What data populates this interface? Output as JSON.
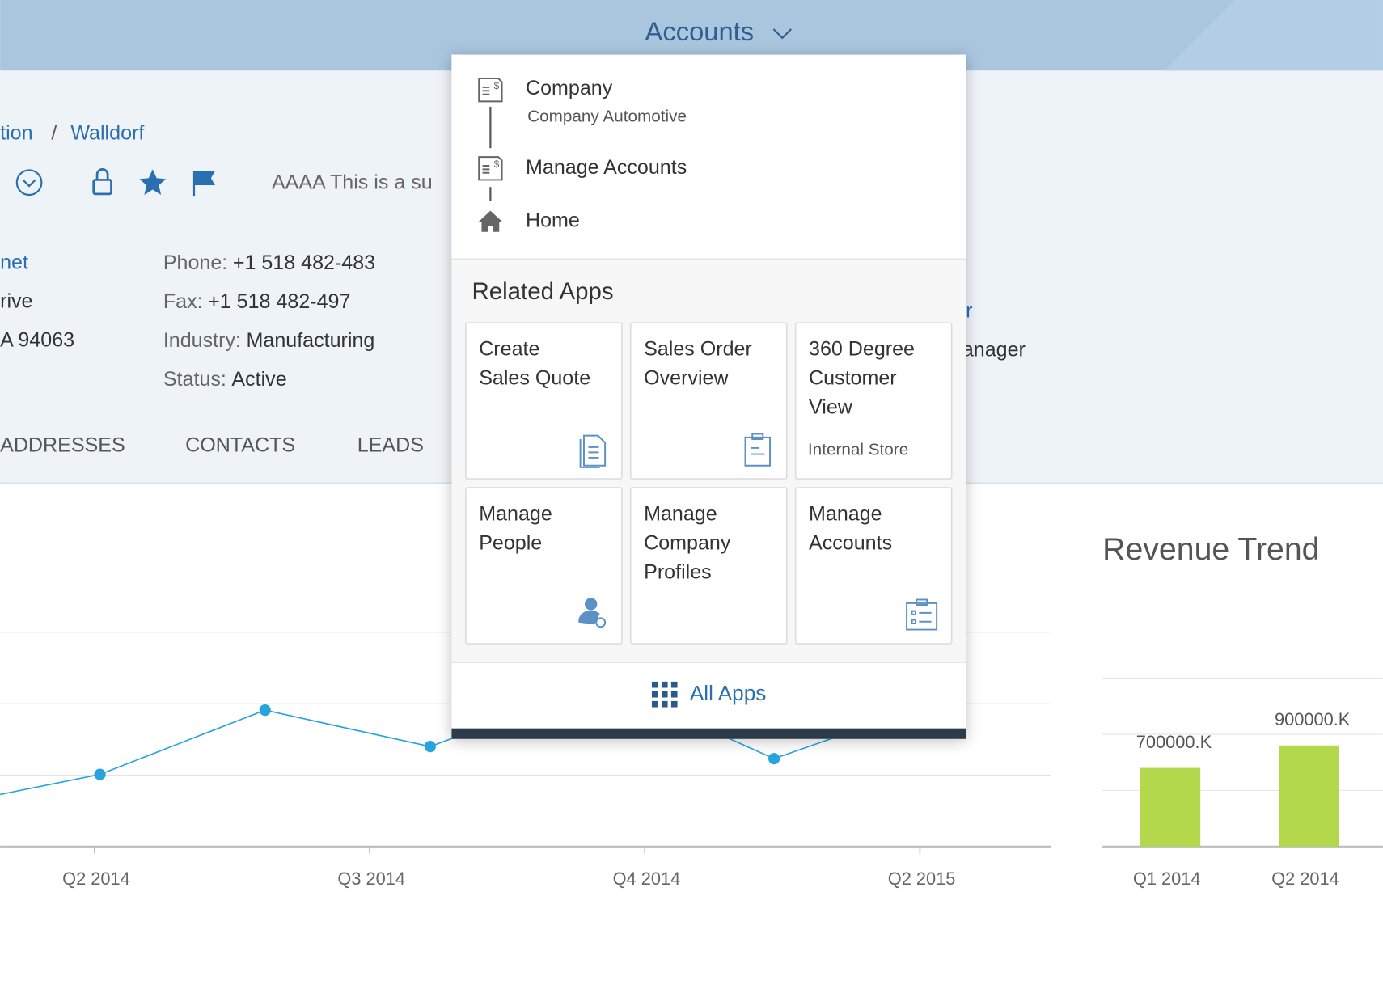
{
  "header": {
    "title": "Accounts"
  },
  "breadcrumb": [
    "tion",
    "/",
    "Walldorf"
  ],
  "object_header": {
    "description": "AAAA This is a su",
    "left_fields": [
      "net",
      "rive",
      "A 94063"
    ],
    "fields": [
      {
        "label": "Phone:",
        "value": "+1 518 482-483"
      },
      {
        "label": "Fax:",
        "value": "+1 518 482-497"
      },
      {
        "label": "Industry:",
        "value": "Manufacturing"
      },
      {
        "label": "Status:",
        "value": "Active"
      }
    ],
    "right_fields": [
      "r",
      "lanager"
    ]
  },
  "tabs": [
    "ADDRESSES",
    "CONTACTS",
    "LEADS"
  ],
  "navigation": {
    "items": [
      {
        "title": "Company",
        "subtitle": "Company Automotive"
      },
      {
        "title": "Manage Accounts"
      },
      {
        "title": "Home"
      }
    ],
    "related_apps_title": "Related Apps",
    "tiles": [
      {
        "title": [
          "Create",
          "Sales Quote"
        ]
      },
      {
        "title": [
          "Sales Order",
          "Overview"
        ]
      },
      {
        "title": [
          "360 Degree",
          "Customer",
          "View"
        ],
        "subtitle": "Internal Store"
      },
      {
        "title": [
          "Manage",
          "People"
        ]
      },
      {
        "title": [
          "Manage",
          "Company",
          "Profiles"
        ]
      },
      {
        "title": [
          "Manage",
          "Accounts"
        ]
      }
    ],
    "all_apps": "All Apps"
  },
  "chart_data": [
    {
      "type": "line",
      "color": "#27a3dd",
      "x": [
        -0.6,
        0.02,
        0.62,
        1.22,
        1.85,
        2.47,
        3.1
      ],
      "values": [
        0.53,
        1.01,
        1.91,
        1.4,
        2.3,
        1.23,
        2.08
      ],
      "xlim": [
        -0.343,
        3.478
      ],
      "xticks": [
        {
          "value": 0,
          "label": "Q2 2014"
        },
        {
          "value": 1,
          "label": "Q3 2014"
        },
        {
          "value": 2,
          "label": "Q4 2014"
        },
        {
          "value": 3,
          "label": "Q2 2015"
        }
      ],
      "ylim": [
        0,
        3.3
      ],
      "yticks": [
        0,
        1,
        2,
        3
      ],
      "grid": true
    },
    {
      "type": "bar",
      "title": "Revenue Trend",
      "color": "#b4d84c",
      "categories": [
        "Q1 2014",
        "Q2 2014"
      ],
      "values": [
        700000,
        900000
      ],
      "value_labels": [
        "700000.K",
        "900000.K"
      ],
      "ylim": [
        0,
        1900000
      ],
      "yticks": [
        0,
        500000,
        1000000,
        1500000
      ],
      "grid": true
    }
  ]
}
